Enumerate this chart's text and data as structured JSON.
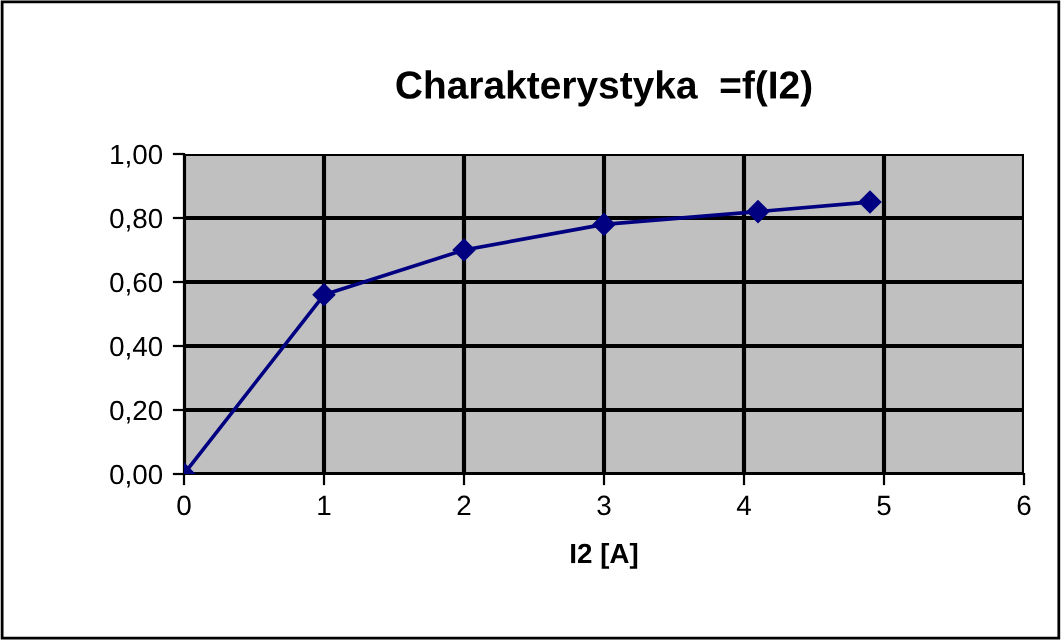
{
  "chart_data": {
    "type": "line",
    "title": "Charakterystyka  =f(I2)",
    "xlabel": "I2 [A]",
    "x": [
      0,
      1,
      2,
      3,
      4.1,
      4.9
    ],
    "series": [
      {
        "color": "#000080",
        "values": [
          0,
          0.56,
          0.7,
          0.78,
          0.82,
          0.85
        ]
      }
    ],
    "xlim": [
      0,
      6
    ],
    "xticks": [
      0,
      1,
      2,
      3,
      4,
      5,
      6
    ],
    "ylim": [
      0,
      1
    ],
    "yticks": [
      {
        "value": 0,
        "label": "0,00"
      },
      {
        "value": 0.2,
        "label": "0,20"
      },
      {
        "value": 0.4,
        "label": "0,40"
      },
      {
        "value": 0.6,
        "label": "0,60"
      },
      {
        "value": 0.8,
        "label": "0,80"
      },
      {
        "value": 1,
        "label": "1,00"
      }
    ],
    "grid": true,
    "marker": "diamond",
    "line_style": "solid"
  }
}
